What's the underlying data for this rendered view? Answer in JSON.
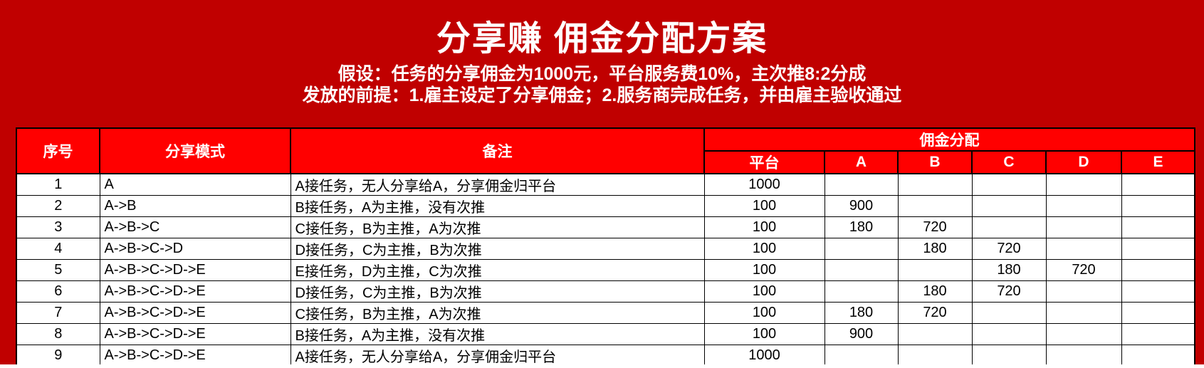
{
  "page": {
    "title": "分享赚 佣金分配方案",
    "subtitle_line1": "假设：任务的分享佣金为1000元，平台服务费10%，主次推8:2分成",
    "subtitle_line2": "发放的前提：1.雇主设定了分享佣金；2.服务商完成任务，并由雇主验收通过"
  },
  "colors": {
    "page_background": "#C00000",
    "header_cell_red": "#FF0000",
    "header_text": "#FFFFFF",
    "body_cell_background": "#FFFFFF",
    "body_text": "#000000",
    "grid_border": "#000000"
  },
  "table": {
    "headers": {
      "index": "序号",
      "share_mode": "分享模式",
      "remark": "备注",
      "commission_group": "佣金分配",
      "sub_columns": [
        "平台",
        "A",
        "B",
        "C",
        "D",
        "E"
      ]
    },
    "rows": [
      {
        "index": "1",
        "mode": "A",
        "remark": "A接任务，无人分享给A，分享佣金归平台",
        "values": [
          "1000",
          "",
          "",
          "",
          "",
          ""
        ]
      },
      {
        "index": "2",
        "mode": "A->B",
        "remark": "B接任务，A为主推，没有次推",
        "values": [
          "100",
          "900",
          "",
          "",
          "",
          ""
        ]
      },
      {
        "index": "3",
        "mode": "A->B->C",
        "remark": "C接任务，B为主推，A为次推",
        "values": [
          "100",
          "180",
          "720",
          "",
          "",
          ""
        ]
      },
      {
        "index": "4",
        "mode": "A->B->C->D",
        "remark": "D接任务，C为主推，B为次推",
        "values": [
          "100",
          "",
          "180",
          "720",
          "",
          ""
        ]
      },
      {
        "index": "5",
        "mode": "A->B->C->D->E",
        "remark": "E接任务，D为主推，C为次推",
        "values": [
          "100",
          "",
          "",
          "180",
          "720",
          ""
        ]
      },
      {
        "index": "6",
        "mode": "A->B->C->D->E",
        "remark": "D接任务，C为主推，B为次推",
        "values": [
          "100",
          "",
          "180",
          "720",
          "",
          ""
        ]
      },
      {
        "index": "7",
        "mode": "A->B->C->D->E",
        "remark": "C接任务，B为主推，A为次推",
        "values": [
          "100",
          "180",
          "720",
          "",
          "",
          ""
        ]
      },
      {
        "index": "8",
        "mode": "A->B->C->D->E",
        "remark": "B接任务，A为主推，没有次推",
        "values": [
          "100",
          "900",
          "",
          "",
          "",
          ""
        ]
      },
      {
        "index": "9",
        "mode": "A->B->C->D->E",
        "remark": "A接任务，无人分享给A，分享佣金归平台",
        "values": [
          "1000",
          "",
          "",
          "",
          "",
          ""
        ]
      }
    ],
    "value_cell_names": [
      "platform-value-cell",
      "a-value-cell",
      "b-value-cell",
      "c-value-cell",
      "d-value-cell",
      "e-value-cell"
    ]
  }
}
